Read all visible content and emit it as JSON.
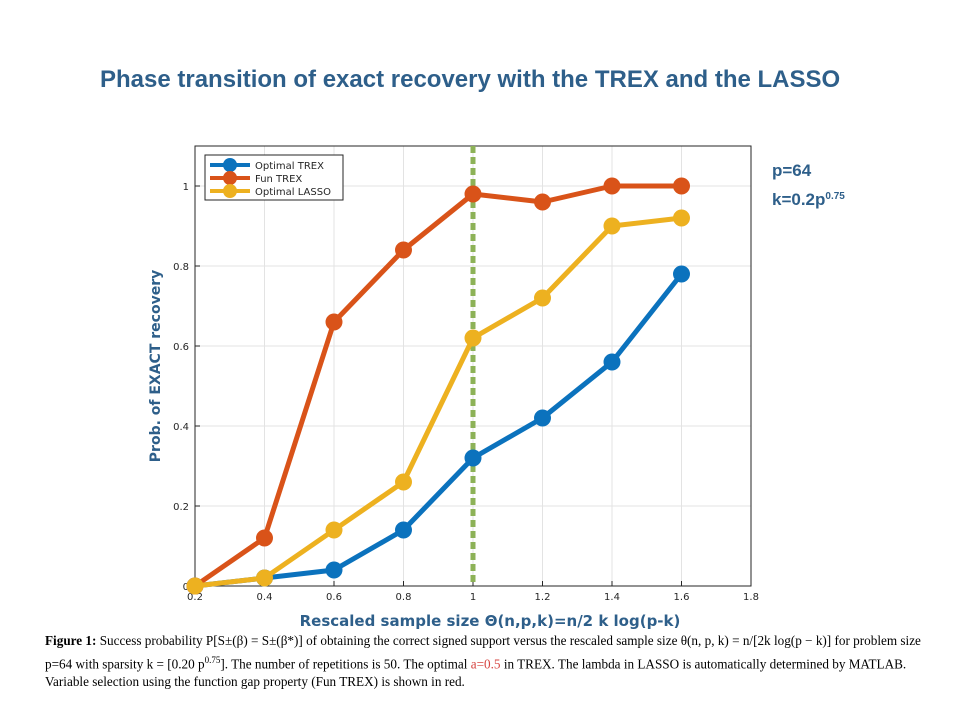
{
  "title": "Phase transition of exact recovery with the TREX and the LASSO",
  "params": {
    "p": "p=64",
    "k_prefix": "k=0.2p",
    "k_exp": "0.75"
  },
  "chart_data": {
    "type": "line",
    "xlabel": "Rescaled sample size Θ(n,p,k)=n/2  k log(p-k)",
    "ylabel": "Prob. of EXACT recovery",
    "xlim": [
      0.2,
      1.8
    ],
    "ylim": [
      0,
      1.1
    ],
    "xticks": [
      "0.2",
      "0.4",
      "0.6",
      "0.8",
      "1",
      "1.2",
      "1.4",
      "1.6",
      "1.8"
    ],
    "yticks": [
      "0",
      "0.2",
      "0.4",
      "0.6",
      "0.8",
      "1"
    ],
    "grid": true,
    "legend_position": "top-left",
    "vline_x": 1,
    "vline_color": "#8db257",
    "x": [
      0.2,
      0.4,
      0.6,
      0.8,
      1.0,
      1.2,
      1.4,
      1.6
    ],
    "series": [
      {
        "name": "Optimal TREX",
        "color": "#0b72bd",
        "values": [
          0,
          0.02,
          0.04,
          0.14,
          0.32,
          0.42,
          0.56,
          0.78
        ]
      },
      {
        "name": "Fun TREX",
        "color": "#d95319",
        "values": [
          0,
          0.12,
          0.66,
          0.84,
          0.98,
          0.96,
          1.0,
          1.0
        ]
      },
      {
        "name": "Optimal LASSO",
        "color": "#edb120",
        "values": [
          0,
          0.02,
          0.14,
          0.26,
          0.62,
          0.72,
          0.9,
          0.92
        ]
      }
    ]
  },
  "caption": {
    "label": "Figure 1:",
    "t1": " Success probability P[S±(β) = S±(β*)] of obtaining the correct signed support versus the rescaled sample size θ(n, p, k) = n/[2k log(p − k)] for problem size p=64 with sparsity k = [0.20 p",
    "t1_sup": "0.75",
    "t2": "]. The number of repetitions is 50. The optimal ",
    "red": "a=0.5",
    "t3": " in TREX. The lambda in LASSO is automatically determined by MATLAB. Variable selection using the function gap property (Fun TREX) is shown in red."
  }
}
